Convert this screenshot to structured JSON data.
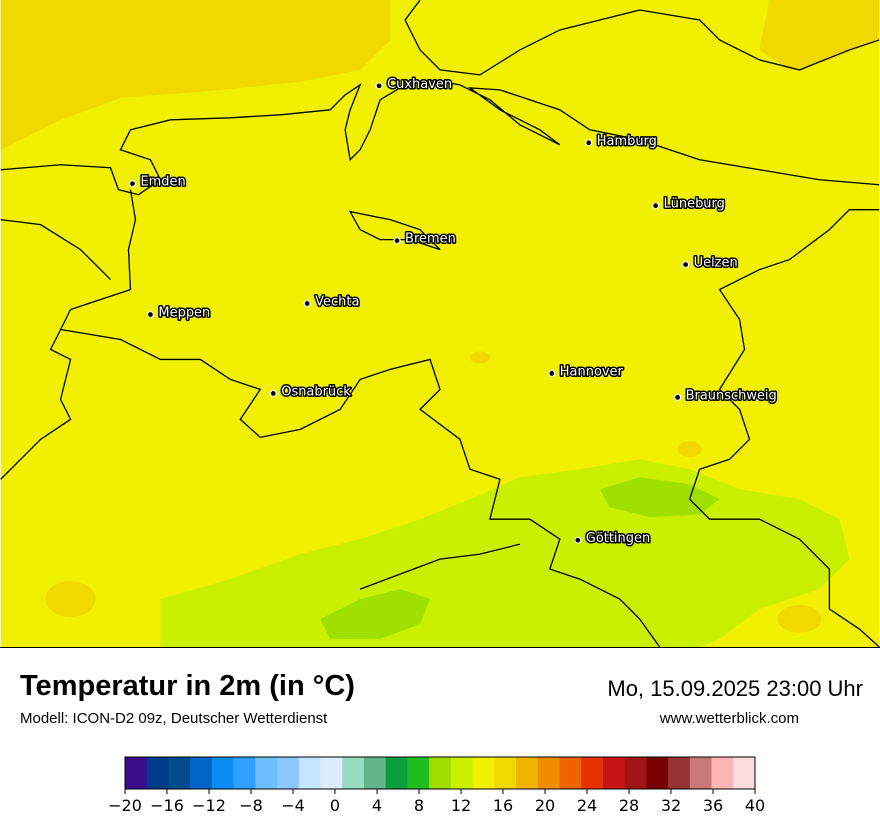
{
  "map": {
    "cities": [
      {
        "name": "Cuxhaven"
      },
      {
        "name": "Hamburg"
      },
      {
        "name": "Emden"
      },
      {
        "name": "Lüneburg"
      },
      {
        "name": "Bremen"
      },
      {
        "name": "Uelzen"
      },
      {
        "name": "Vechta"
      },
      {
        "name": "Meppen"
      },
      {
        "name": "Hannover"
      },
      {
        "name": "Osnabrück"
      },
      {
        "name": "Braunschweig"
      },
      {
        "name": "Göttingen"
      }
    ],
    "colors": {
      "warm_yellow": "#f0f000",
      "dark_yellow": "#f0d800",
      "light_green": "#c8f000",
      "green": "#a0e000"
    }
  },
  "footer": {
    "title": "Temperatur in 2m (in °C)",
    "model": "Modell: ICON-D2 09z, Deutscher Wetterdienst",
    "datetime": "Mo, 15.09.2025 23:00 Uhr",
    "website": "www.wetterblick.com"
  },
  "legend": {
    "unit": "°C",
    "colors": [
      "#3b0c8c",
      "#003c8c",
      "#004c8c",
      "#0064c8",
      "#0a8cf0",
      "#2ea0ff",
      "#6ebeff",
      "#8cc8ff",
      "#c4e4ff",
      "#dcecff",
      "#96dcc0",
      "#64b48c",
      "#0a9e3c",
      "#1ebe1e",
      "#a0dc00",
      "#c8f000",
      "#f0f000",
      "#f0d800",
      "#f0b400",
      "#f08c00",
      "#f06400",
      "#e63200",
      "#c81414",
      "#a01414",
      "#780000",
      "#963232",
      "#c87878",
      "#ffb4b4",
      "#ffdcdc"
    ],
    "ticks": [
      "−20",
      "−16",
      "−12",
      "−8",
      "−4",
      "0",
      "4",
      "8",
      "12",
      "16",
      "20",
      "24",
      "28",
      "32",
      "36",
      "40"
    ]
  }
}
